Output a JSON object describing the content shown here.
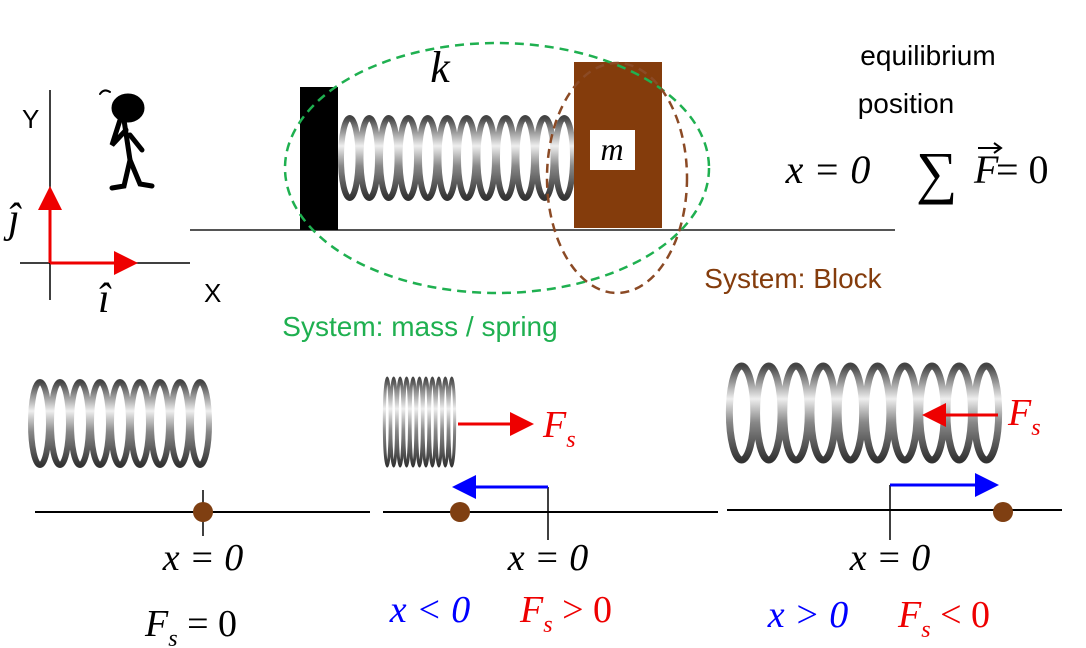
{
  "axes": {
    "y_label": "Y",
    "x_label": "X",
    "j_hat": "ĵ",
    "i_hat": "î"
  },
  "setup": {
    "spring_constant": "k",
    "mass": "m",
    "equilibrium_line1": "equilibrium",
    "equilibrium_line2": "position",
    "position_eq": "x = 0",
    "sum_symbol": "∑",
    "force_vector": "F",
    "force_eq": " = 0",
    "block_system": "System: Block",
    "mass_spring_system": "System: mass / spring"
  },
  "panels": [
    {
      "position": "x = 0",
      "force": {
        "symbol": "F",
        "subscript": "s",
        "relation": " = 0"
      }
    },
    {
      "arrow_label": {
        "symbol": "F",
        "subscript": "s"
      },
      "position": "x = 0",
      "displacement": "x < 0",
      "force": {
        "symbol": "F",
        "subscript": "s",
        "relation": " > 0"
      }
    },
    {
      "arrow_label": {
        "symbol": "F",
        "subscript": "s"
      },
      "position": "x = 0",
      "displacement": "x > 0",
      "force": {
        "symbol": "F",
        "subscript": "s",
        "relation": " < 0"
      }
    }
  ]
}
